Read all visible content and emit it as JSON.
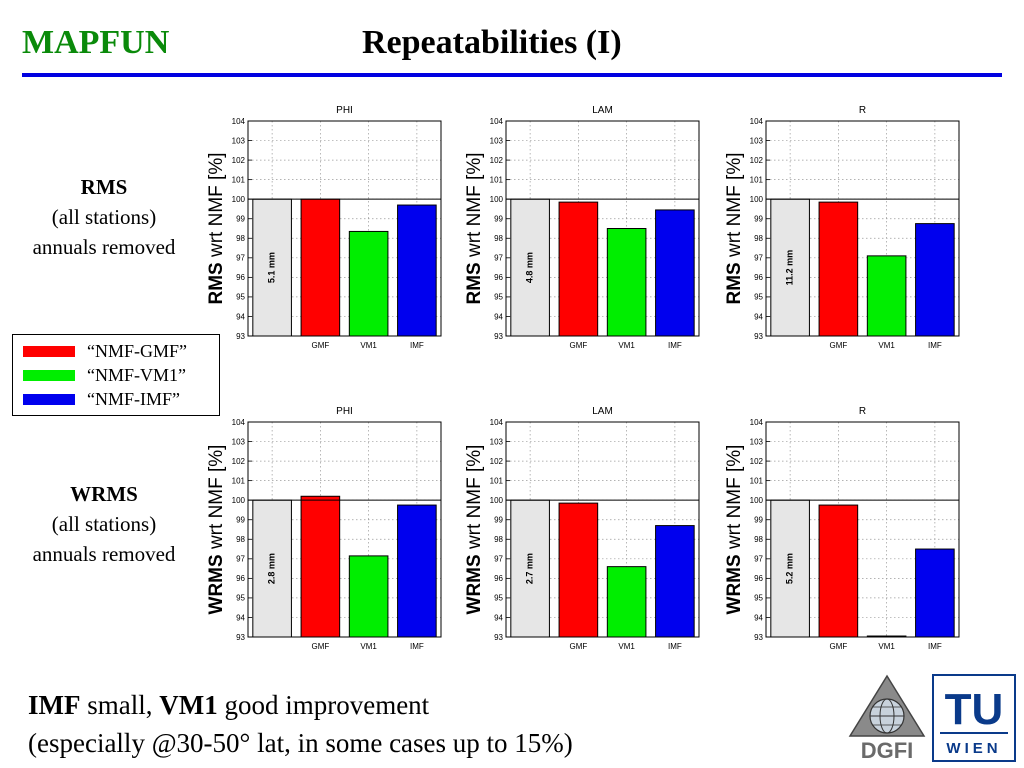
{
  "header": {
    "brand": "MAPFUN",
    "title": "Repeatabilities (I)"
  },
  "rows": [
    {
      "label_bold": "RMS",
      "line2": "(all stations)",
      "line3": "annuals removed"
    },
    {
      "label_bold": "WRMS",
      "line2": "(all stations)",
      "line3": "annuals removed"
    }
  ],
  "legend": {
    "items": [
      {
        "label": "“NMF-GMF”",
        "color": "#ff0000"
      },
      {
        "label": "“NMF-VM1”",
        "color": "#00ee00"
      },
      {
        "label": "“NMF-IMF”",
        "color": "#0000ee"
      }
    ]
  },
  "chart_data": [
    {
      "type": "bar",
      "title": "PHI",
      "ylabel_bold": "RMS",
      "ylabel_rest": " wrt NMF [%]",
      "ylim": [
        93,
        104
      ],
      "yticks": [
        93,
        94,
        95,
        96,
        97,
        98,
        99,
        100,
        101,
        102,
        103,
        104
      ],
      "categories": [
        "",
        "GMF",
        "VM1",
        "IMF"
      ],
      "values": [
        100,
        100.0,
        98.35,
        99.7
      ],
      "colors": [
        "#e6e6e6",
        "#ff0000",
        "#00ee00",
        "#0000ee"
      ],
      "ref_label": "5.1 mm",
      "grid": true
    },
    {
      "type": "bar",
      "title": "LAM",
      "ylabel_bold": "RMS",
      "ylabel_rest": " wrt NMF [%]",
      "ylim": [
        93,
        104
      ],
      "yticks": [
        93,
        94,
        95,
        96,
        97,
        98,
        99,
        100,
        101,
        102,
        103,
        104
      ],
      "categories": [
        "",
        "GMF",
        "VM1",
        "IMF"
      ],
      "values": [
        100,
        99.85,
        98.5,
        99.45
      ],
      "colors": [
        "#e6e6e6",
        "#ff0000",
        "#00ee00",
        "#0000ee"
      ],
      "ref_label": "4.8 mm",
      "grid": true
    },
    {
      "type": "bar",
      "title": "R",
      "ylabel_bold": "RMS",
      "ylabel_rest": " wrt NMF [%]",
      "ylim": [
        93,
        104
      ],
      "yticks": [
        93,
        94,
        95,
        96,
        97,
        98,
        99,
        100,
        101,
        102,
        103,
        104
      ],
      "categories": [
        "",
        "GMF",
        "VM1",
        "IMF"
      ],
      "values": [
        100,
        99.85,
        97.1,
        98.75
      ],
      "colors": [
        "#e6e6e6",
        "#ff0000",
        "#00ee00",
        "#0000ee"
      ],
      "ref_label": "11.2 mm",
      "grid": true
    },
    {
      "type": "bar",
      "title": "PHI",
      "ylabel_bold": "WRMS",
      "ylabel_rest": " wrt NMF [%]",
      "ylim": [
        93,
        104
      ],
      "yticks": [
        93,
        94,
        95,
        96,
        97,
        98,
        99,
        100,
        101,
        102,
        103,
        104
      ],
      "categories": [
        "",
        "GMF",
        "VM1",
        "IMF"
      ],
      "values": [
        100,
        100.2,
        97.15,
        99.75
      ],
      "colors": [
        "#e6e6e6",
        "#ff0000",
        "#00ee00",
        "#0000ee"
      ],
      "ref_label": "2.8 mm",
      "grid": true
    },
    {
      "type": "bar",
      "title": "LAM",
      "ylabel_bold": "WRMS",
      "ylabel_rest": " wrt NMF [%]",
      "ylim": [
        93,
        104
      ],
      "yticks": [
        93,
        94,
        95,
        96,
        97,
        98,
        99,
        100,
        101,
        102,
        103,
        104
      ],
      "categories": [
        "",
        "GMF",
        "VM1",
        "IMF"
      ],
      "values": [
        100,
        99.85,
        96.6,
        98.7
      ],
      "colors": [
        "#e6e6e6",
        "#ff0000",
        "#00ee00",
        "#0000ee"
      ],
      "ref_label": "2.7 mm",
      "grid": true
    },
    {
      "type": "bar",
      "title": "R",
      "ylabel_bold": "WRMS",
      "ylabel_rest": " wrt NMF [%]",
      "ylim": [
        93,
        104
      ],
      "yticks": [
        93,
        94,
        95,
        96,
        97,
        98,
        99,
        100,
        101,
        102,
        103,
        104
      ],
      "categories": [
        "",
        "GMF",
        "VM1",
        "IMF"
      ],
      "values": [
        100,
        99.75,
        93.05,
        97.5
      ],
      "colors": [
        "#e6e6e6",
        "#ff0000",
        "#00ee00",
        "#0000ee"
      ],
      "ref_label": "5.2 mm",
      "grid": true
    }
  ],
  "footer": {
    "line1_b1": "IMF",
    "line1_t1": " small, ",
    "line1_b2": "VM1",
    "line1_t2": " good improvement",
    "line2": "(especially @30-50° lat, in some cases up to 15%)"
  },
  "logos": {
    "dgfi": "DGFI",
    "tu": "TU",
    "wien": "WIEN",
    "dgfi_color": "#6a6a6a",
    "tu_color": "#0a3a8a"
  }
}
